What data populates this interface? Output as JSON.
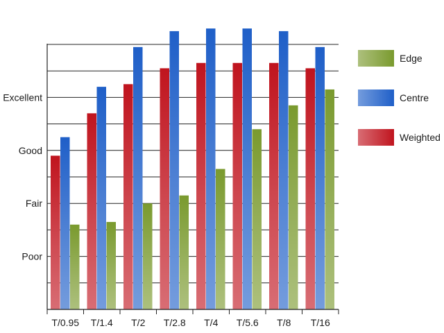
{
  "chart_data": {
    "type": "bar",
    "categories": [
      "T/0.95",
      "T/1.4",
      "T/2",
      "T/2.8",
      "T/4",
      "T/5.6",
      "T/8",
      "T/16"
    ],
    "series": [
      {
        "name": "Weighted",
        "color": "#c0141e",
        "values": [
          5.8,
          7.4,
          8.5,
          9.1,
          9.3,
          9.3,
          9.3,
          9.1
        ]
      },
      {
        "name": "Centre",
        "color": "#1f5fc8",
        "values": [
          6.5,
          8.4,
          9.9,
          10.5,
          10.6,
          10.6,
          10.5,
          9.9
        ]
      },
      {
        "name": "Edge",
        "color": "#7a9a2e",
        "values": [
          3.2,
          3.3,
          4.0,
          4.3,
          5.3,
          6.8,
          7.7,
          8.3
        ]
      }
    ],
    "yticks": [
      {
        "value": 2,
        "label": "Poor"
      },
      {
        "value": 4,
        "label": "Fair"
      },
      {
        "value": 6,
        "label": "Good"
      },
      {
        "value": 8,
        "label": "Excellent"
      }
    ],
    "ylim": [
      0,
      10
    ],
    "grid": true,
    "legend_placement": "right",
    "legend_order": [
      "Edge",
      "Centre",
      "Weighted"
    ]
  }
}
